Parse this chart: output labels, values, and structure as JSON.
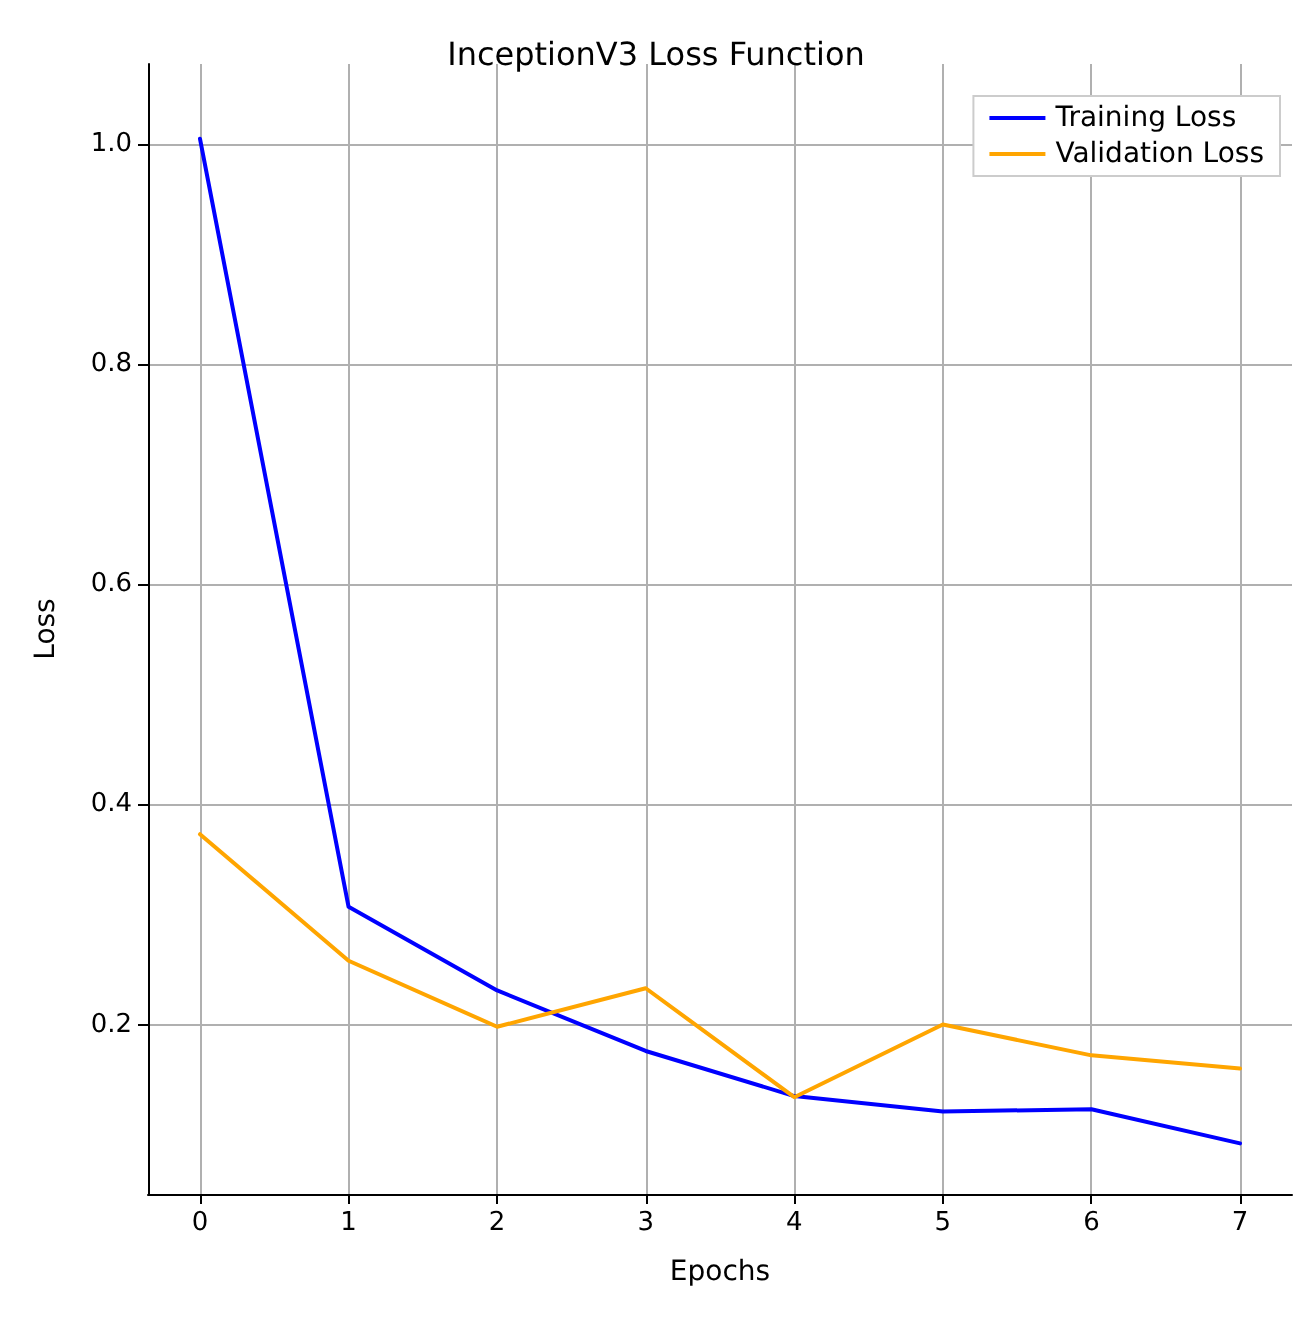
{
  "chart_data": {
    "type": "line",
    "title": "InceptionV3 Loss Function",
    "xlabel": "Epochs",
    "ylabel": "Loss",
    "x": [
      0,
      1,
      2,
      3,
      4,
      5,
      6,
      7
    ],
    "series": [
      {
        "name": "Training Loss",
        "color": "#0000ff",
        "values": [
          1.005,
          0.307,
          0.231,
          0.176,
          0.135,
          0.121,
          0.123,
          0.092
        ]
      },
      {
        "name": "Validation Loss",
        "color": "#ffa500",
        "values": [
          0.373,
          0.258,
          0.198,
          0.233,
          0.134,
          0.2,
          0.172,
          0.16
        ]
      }
    ],
    "xlim": [
      -0.35,
      7.35
    ],
    "xticks": [
      0,
      1,
      2,
      3,
      4,
      5,
      6,
      7
    ],
    "ylim": [
      0.046,
      1.073
    ],
    "yticks": [
      0.2,
      0.4,
      0.6,
      0.8,
      {
        "value": 1,
        "label": "1.0"
      }
    ],
    "grid": true,
    "legend": "top right",
    "marker": "none",
    "line_style": "solid"
  }
}
